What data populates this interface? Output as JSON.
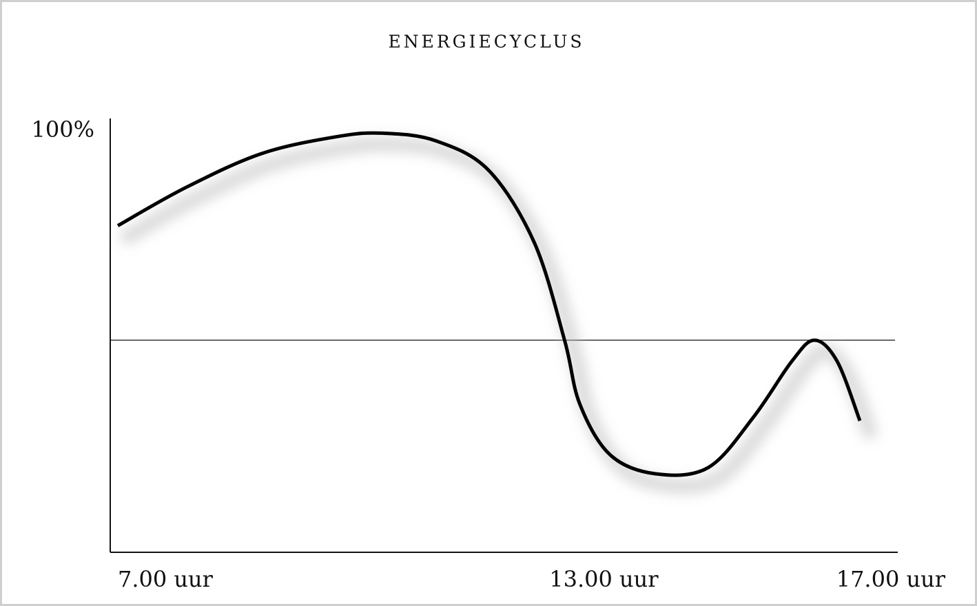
{
  "chart_data": {
    "type": "line",
    "title": "ENERGIECYCLUS",
    "xlabel": "",
    "ylabel": "",
    "y_axis_label": "100%",
    "x_ticks": [
      {
        "label": "7.00 uur",
        "value": 7
      },
      {
        "label": "13.00 uur",
        "value": 13
      },
      {
        "label": "17.00 uur",
        "value": 17
      }
    ],
    "xlim": [
      7,
      17.4
    ],
    "ylim": [
      0,
      100
    ],
    "reference_line": 50,
    "grid": false,
    "legend": "none",
    "series": [
      {
        "values": [
          {
            "x": 7.1,
            "y": 77
          },
          {
            "x": 8.0,
            "y": 86
          },
          {
            "x": 9.0,
            "y": 94
          },
          {
            "x": 10.0,
            "y": 98
          },
          {
            "x": 10.6,
            "y": 98.8
          },
          {
            "x": 11.3,
            "y": 97
          },
          {
            "x": 12.0,
            "y": 90
          },
          {
            "x": 12.6,
            "y": 73
          },
          {
            "x": 13.0,
            "y": 50
          },
          {
            "x": 13.2,
            "y": 35
          },
          {
            "x": 13.6,
            "y": 23
          },
          {
            "x": 14.2,
            "y": 18.5
          },
          {
            "x": 14.9,
            "y": 20
          },
          {
            "x": 15.5,
            "y": 32
          },
          {
            "x": 16.0,
            "y": 45
          },
          {
            "x": 16.3,
            "y": 50
          },
          {
            "x": 16.6,
            "y": 45
          },
          {
            "x": 16.9,
            "y": 31
          }
        ]
      }
    ],
    "line_color": "#000000",
    "shadow_color": "#bdbdbd"
  }
}
